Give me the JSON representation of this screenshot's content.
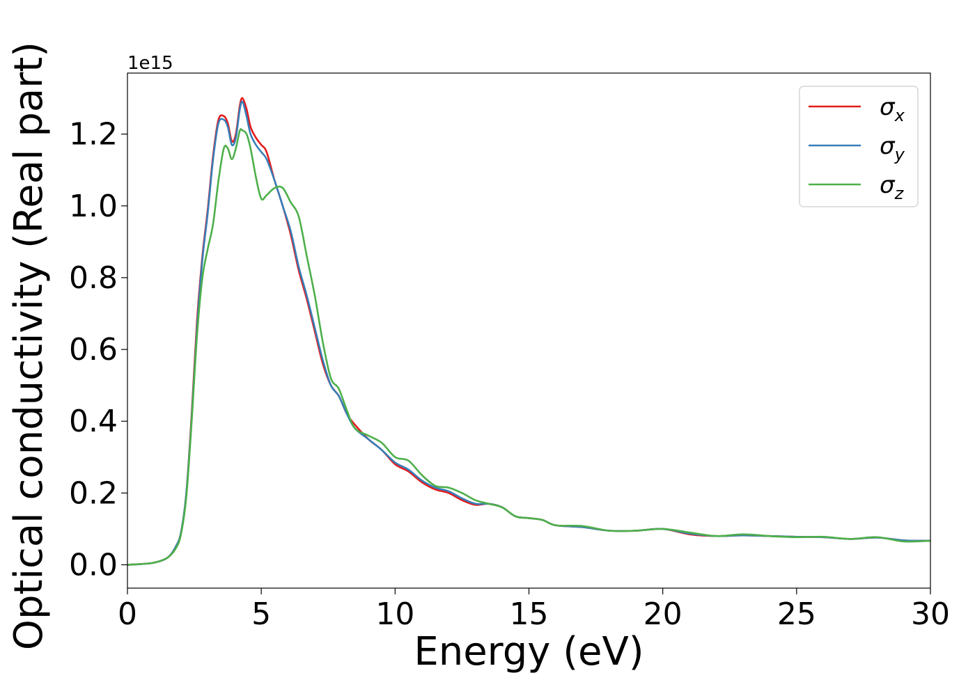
{
  "chart_data": {
    "type": "line",
    "title": "",
    "xlabel": "Energy (eV)",
    "ylabel": "Optical conductivity (Real part)",
    "y_offset_label": "1e15",
    "xlim": [
      0,
      30
    ],
    "ylim": [
      -0.065,
      1.37
    ],
    "x_ticks": [
      0,
      5,
      10,
      15,
      20,
      25,
      30
    ],
    "y_ticks": [
      0.0,
      0.2,
      0.4,
      0.6,
      0.8,
      1.0,
      1.2
    ],
    "x_tick_labels": [
      "0",
      "5",
      "10",
      "15",
      "20",
      "25",
      "30"
    ],
    "y_tick_labels": [
      "0.0",
      "0.2",
      "0.4",
      "0.6",
      "0.8",
      "1.0",
      "1.2"
    ],
    "grid": false,
    "legend": {
      "placement": "top-right"
    },
    "series": [
      {
        "name": "σx",
        "symbol": "σ",
        "subscript": "x",
        "color": "#e41a1c",
        "x": [
          0,
          0.5,
          1.0,
          1.5,
          1.8,
          2.0,
          2.2,
          2.4,
          2.6,
          2.8,
          3.0,
          3.2,
          3.4,
          3.6,
          3.75,
          3.9,
          4.05,
          4.2,
          4.3,
          4.45,
          4.6,
          4.8,
          5.0,
          5.2,
          5.5,
          5.8,
          6.1,
          6.4,
          6.7,
          7.0,
          7.3,
          7.6,
          7.9,
          8.2,
          8.5,
          9.0,
          9.5,
          10.0,
          10.5,
          11.0,
          11.5,
          12.0,
          12.5,
          13.0,
          13.5,
          14.0,
          14.5,
          15.0,
          15.5,
          16.0,
          17.0,
          18.0,
          19.0,
          20.0,
          21.0,
          22.0,
          23.0,
          24.0,
          25.0,
          26.0,
          27.0,
          28.0,
          29.0,
          30.0
        ],
        "y": [
          0.0,
          0.002,
          0.006,
          0.02,
          0.05,
          0.09,
          0.2,
          0.42,
          0.68,
          0.86,
          0.99,
          1.14,
          1.24,
          1.25,
          1.23,
          1.18,
          1.2,
          1.28,
          1.3,
          1.27,
          1.22,
          1.19,
          1.17,
          1.15,
          1.07,
          1.0,
          0.92,
          0.82,
          0.74,
          0.65,
          0.56,
          0.5,
          0.47,
          0.42,
          0.39,
          0.35,
          0.32,
          0.28,
          0.26,
          0.23,
          0.21,
          0.2,
          0.18,
          0.167,
          0.17,
          0.16,
          0.135,
          0.13,
          0.125,
          0.11,
          0.105,
          0.095,
          0.095,
          0.1,
          0.085,
          0.08,
          0.082,
          0.08,
          0.078,
          0.077,
          0.072,
          0.076,
          0.068,
          0.067
        ]
      },
      {
        "name": "σy",
        "symbol": "σ",
        "subscript": "y",
        "color": "#377eb8",
        "x": [
          0,
          0.5,
          1.0,
          1.5,
          1.8,
          2.0,
          2.2,
          2.4,
          2.6,
          2.8,
          3.0,
          3.2,
          3.4,
          3.6,
          3.75,
          3.9,
          4.05,
          4.2,
          4.3,
          4.45,
          4.6,
          4.8,
          5.0,
          5.2,
          5.5,
          5.8,
          6.1,
          6.4,
          6.7,
          7.0,
          7.3,
          7.6,
          7.9,
          8.2,
          8.5,
          9.0,
          9.5,
          10.0,
          10.5,
          11.0,
          11.5,
          12.0,
          12.5,
          13.0,
          13.5,
          14.0,
          14.5,
          15.0,
          15.5,
          16.0,
          17.0,
          18.0,
          19.0,
          20.0,
          21.0,
          22.0,
          23.0,
          24.0,
          25.0,
          26.0,
          27.0,
          28.0,
          29.0,
          30.0
        ],
        "y": [
          0.0,
          0.002,
          0.006,
          0.02,
          0.05,
          0.09,
          0.2,
          0.41,
          0.66,
          0.85,
          0.98,
          1.13,
          1.23,
          1.24,
          1.22,
          1.17,
          1.19,
          1.27,
          1.29,
          1.25,
          1.2,
          1.17,
          1.15,
          1.13,
          1.07,
          1.0,
          0.93,
          0.83,
          0.75,
          0.66,
          0.57,
          0.5,
          0.47,
          0.42,
          0.38,
          0.35,
          0.32,
          0.285,
          0.265,
          0.235,
          0.215,
          0.205,
          0.185,
          0.17,
          0.17,
          0.16,
          0.135,
          0.13,
          0.125,
          0.11,
          0.105,
          0.095,
          0.095,
          0.1,
          0.087,
          0.08,
          0.082,
          0.08,
          0.078,
          0.077,
          0.072,
          0.076,
          0.068,
          0.067
        ]
      },
      {
        "name": "σz",
        "symbol": "σ",
        "subscript": "z",
        "color": "#4daf4a",
        "x": [
          0,
          0.5,
          1.0,
          1.5,
          1.8,
          2.0,
          2.2,
          2.4,
          2.6,
          2.8,
          3.0,
          3.2,
          3.4,
          3.6,
          3.75,
          3.9,
          4.05,
          4.2,
          4.3,
          4.45,
          4.6,
          4.8,
          5.0,
          5.2,
          5.5,
          5.8,
          6.1,
          6.4,
          6.7,
          7.0,
          7.3,
          7.6,
          7.9,
          8.2,
          8.5,
          9.0,
          9.5,
          10.0,
          10.5,
          11.0,
          11.5,
          12.0,
          12.5,
          13.0,
          13.5,
          14.0,
          14.5,
          15.0,
          15.5,
          16.0,
          17.0,
          18.0,
          19.0,
          20.0,
          21.0,
          22.0,
          23.0,
          24.0,
          25.0,
          26.0,
          27.0,
          28.0,
          29.0,
          30.0
        ],
        "y": [
          0.0,
          0.002,
          0.006,
          0.02,
          0.045,
          0.085,
          0.19,
          0.4,
          0.64,
          0.8,
          0.88,
          0.95,
          1.07,
          1.16,
          1.16,
          1.13,
          1.16,
          1.21,
          1.21,
          1.2,
          1.16,
          1.08,
          1.02,
          1.03,
          1.05,
          1.05,
          1.01,
          0.97,
          0.86,
          0.75,
          0.62,
          0.52,
          0.49,
          0.43,
          0.38,
          0.36,
          0.34,
          0.3,
          0.29,
          0.25,
          0.22,
          0.215,
          0.2,
          0.18,
          0.17,
          0.16,
          0.135,
          0.13,
          0.125,
          0.11,
          0.108,
          0.095,
          0.095,
          0.1,
          0.09,
          0.08,
          0.085,
          0.08,
          0.077,
          0.078,
          0.072,
          0.077,
          0.065,
          0.067
        ]
      }
    ]
  }
}
